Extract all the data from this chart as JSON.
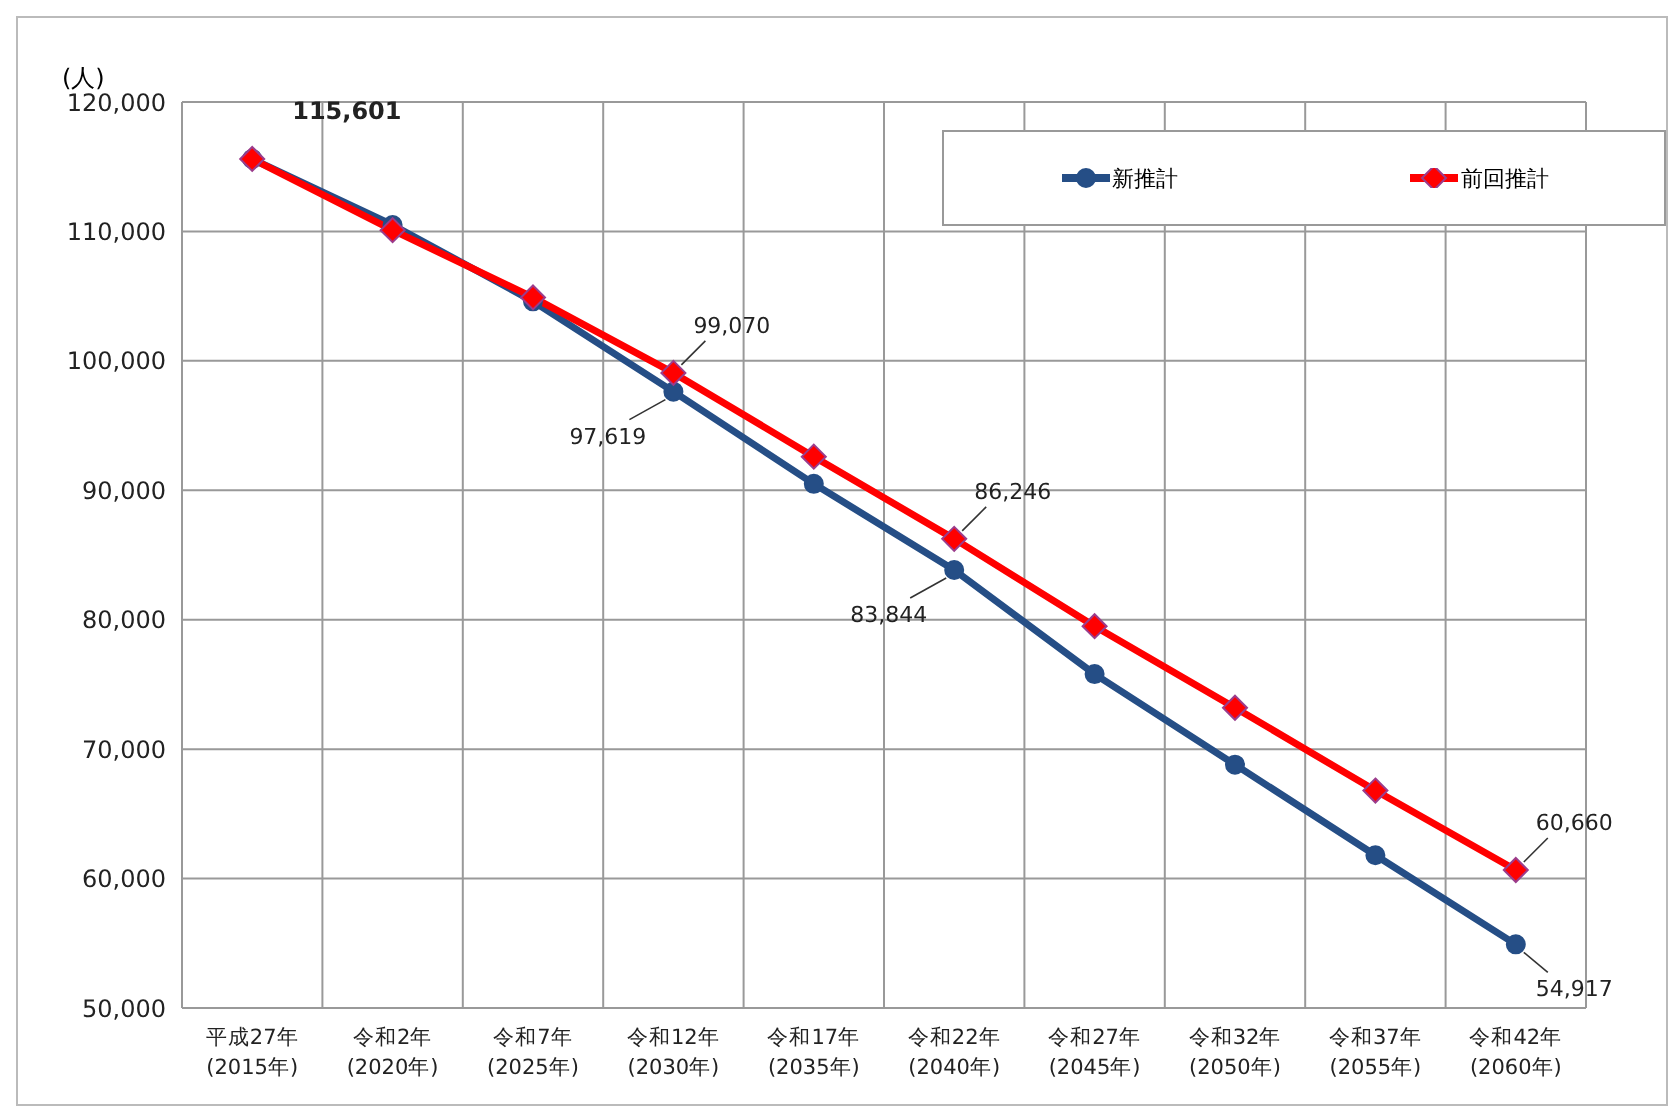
{
  "chart_data": {
    "type": "line",
    "ylabel": "(人)",
    "categories": [
      "平成27年\n(2015年)",
      "令和2年\n(2020年)",
      "令和7年\n(2025年)",
      "令和12年\n(2030年)",
      "令和17年\n(2035年)",
      "令和22年\n(2040年)",
      "令和27年\n(2045年)",
      "令和32年\n(2050年)",
      "令和37年\n(2055年)",
      "令和42年\n(2060年)"
    ],
    "series": [
      {
        "name": "新推計",
        "color": "#254e86",
        "marker": "circle",
        "values": [
          115601,
          110500,
          104600,
          97619,
          90500,
          83844,
          75800,
          68800,
          61800,
          54917
        ],
        "value_labels": [
          null,
          null,
          null,
          "97,619",
          null,
          "83,844",
          null,
          null,
          null,
          "54,917"
        ]
      },
      {
        "name": "前回推計",
        "color": "#ff0000",
        "marker": "diamond",
        "values": [
          115601,
          110100,
          104900,
          99070,
          92600,
          86246,
          79500,
          73200,
          66800,
          60660
        ],
        "value_labels": [
          "115,601",
          null,
          null,
          "99,070",
          null,
          "86,246",
          null,
          null,
          null,
          "60,660"
        ]
      }
    ],
    "ylim": [
      50000,
      120000
    ],
    "yticks": [
      {
        "value": 50000,
        "label": "50,000"
      },
      {
        "value": 60000,
        "label": "60,000"
      },
      {
        "value": 70000,
        "label": "70,000"
      },
      {
        "value": 80000,
        "label": "80,000"
      },
      {
        "value": 90000,
        "label": "90,000"
      },
      {
        "value": 100000,
        "label": "100,000"
      },
      {
        "value": 110000,
        "label": "110,000"
      },
      {
        "value": 120000,
        "label": "120,000"
      }
    ],
    "grid": true,
    "legend": "top right",
    "line_style": "solid"
  }
}
